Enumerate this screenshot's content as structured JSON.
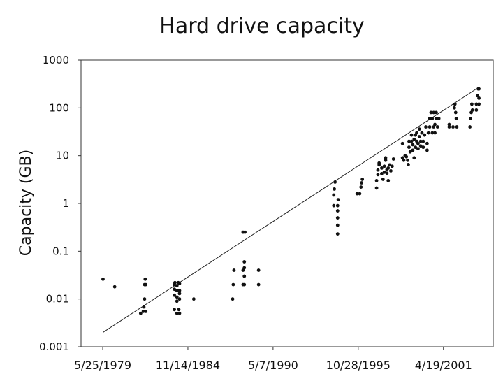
{
  "chart_data": {
    "type": "scatter",
    "title": "Hard drive capacity",
    "xlabel": "",
    "ylabel": "Capacity (GB)",
    "y_scale": "log",
    "ylim": [
      0.001,
      1000
    ],
    "yticks": [
      "1000",
      "100",
      "10",
      "1",
      "0.1",
      "0.01",
      "0.001"
    ],
    "xlim": [
      "1978-01-01",
      "2004-07-01"
    ],
    "xticks": [
      "5/25/1979",
      "11/14/1984",
      "5/7/1990",
      "10/28/1995",
      "4/19/2001"
    ],
    "grid": false,
    "legend": "none",
    "trend_line": {
      "start": [
        "1979-06-01",
        0.002
      ],
      "end": [
        "2003-06-01",
        250
      ]
    },
    "points": [
      [
        "1979-06-01",
        0.026
      ],
      [
        "1980-03-01",
        0.018
      ],
      [
        "1981-11-01",
        0.005
      ],
      [
        "1982-01-01",
        0.0055
      ],
      [
        "1982-01-15",
        0.0068
      ],
      [
        "1982-02-01",
        0.01
      ],
      [
        "1982-02-01",
        0.02
      ],
      [
        "1982-02-15",
        0.026
      ],
      [
        "1982-03-01",
        0.02
      ],
      [
        "1982-03-01",
        0.0055
      ],
      [
        "1984-01-01",
        0.006
      ],
      [
        "1984-01-01",
        0.012
      ],
      [
        "1984-01-01",
        0.016
      ],
      [
        "1984-01-01",
        0.02
      ],
      [
        "1984-01-15",
        0.022
      ],
      [
        "1984-03-01",
        0.005
      ],
      [
        "1984-03-01",
        0.009
      ],
      [
        "1984-03-01",
        0.011
      ],
      [
        "1984-03-01",
        0.015
      ],
      [
        "1984-03-01",
        0.019
      ],
      [
        "1984-04-01",
        0.022
      ],
      [
        "1984-04-15",
        0.006
      ],
      [
        "1984-05-01",
        0.005
      ],
      [
        "1984-05-01",
        0.01
      ],
      [
        "1984-05-01",
        0.013
      ],
      [
        "1984-05-01",
        0.015
      ],
      [
        "1984-05-01",
        0.021
      ],
      [
        "1985-04-01",
        0.01
      ],
      [
        "1987-10-01",
        0.01
      ],
      [
        "1987-10-15",
        0.02
      ],
      [
        "1987-11-01",
        0.04
      ],
      [
        "1988-06-01",
        0.02
      ],
      [
        "1988-06-01",
        0.04
      ],
      [
        "1988-06-01",
        0.25
      ],
      [
        "1988-07-01",
        0.02
      ],
      [
        "1988-07-01",
        0.03
      ],
      [
        "1988-07-01",
        0.045
      ],
      [
        "1988-07-01",
        0.06
      ],
      [
        "1988-07-15",
        0.25
      ],
      [
        "1989-06-01",
        0.02
      ],
      [
        "1989-06-01",
        0.04
      ],
      [
        "1994-04-01",
        0.9
      ],
      [
        "1994-04-01",
        1.5
      ],
      [
        "1994-04-15",
        2.0
      ],
      [
        "1994-05-01",
        2.8
      ],
      [
        "1994-07-01",
        0.23
      ],
      [
        "1994-07-01",
        0.35
      ],
      [
        "1994-07-01",
        0.5
      ],
      [
        "1994-07-01",
        0.7
      ],
      [
        "1994-07-01",
        0.9
      ],
      [
        "1994-07-15",
        1.2
      ],
      [
        "1995-10-01",
        1.6
      ],
      [
        "1995-12-01",
        1.6
      ],
      [
        "1996-01-01",
        2.2
      ],
      [
        "1996-01-15",
        2.7
      ],
      [
        "1996-02-01",
        3.2
      ],
      [
        "1997-01-01",
        2.1
      ],
      [
        "1997-01-01",
        3.0
      ],
      [
        "1997-02-01",
        4.0
      ],
      [
        "1997-02-01",
        5.0
      ],
      [
        "1997-03-01",
        6.4
      ],
      [
        "1997-03-01",
        7.0
      ],
      [
        "1997-05-01",
        4.2
      ],
      [
        "1997-05-01",
        5.5
      ],
      [
        "1997-06-01",
        3.2
      ],
      [
        "1997-07-01",
        4.5
      ],
      [
        "1997-07-01",
        6.0
      ],
      [
        "1997-08-01",
        8.0
      ],
      [
        "1997-08-01",
        9.0
      ],
      [
        "1997-09-01",
        4.3
      ],
      [
        "1997-09-01",
        5.1
      ],
      [
        "1997-10-01",
        3.0
      ],
      [
        "1997-10-01",
        5.5
      ],
      [
        "1997-11-01",
        6.4
      ],
      [
        "1997-12-01",
        4.8
      ],
      [
        "1998-01-01",
        6.0
      ],
      [
        "1998-02-01",
        8.5
      ],
      [
        "1998-09-01",
        9.0
      ],
      [
        "1998-09-01",
        18
      ],
      [
        "1998-10-01",
        8.0
      ],
      [
        "1998-11-01",
        10
      ],
      [
        "1998-12-01",
        9.5
      ],
      [
        "1999-01-01",
        8.0
      ],
      [
        "1999-01-15",
        6.5
      ],
      [
        "1999-02-01",
        15
      ],
      [
        "1999-02-01",
        20
      ],
      [
        "1999-03-01",
        12
      ],
      [
        "1999-04-01",
        20
      ],
      [
        "1999-04-01",
        27
      ],
      [
        "1999-05-01",
        13
      ],
      [
        "1999-05-01",
        17
      ],
      [
        "1999-06-01",
        9.0
      ],
      [
        "1999-06-01",
        22
      ],
      [
        "1999-07-01",
        15
      ],
      [
        "1999-07-01",
        27
      ],
      [
        "1999-08-01",
        20
      ],
      [
        "1999-08-01",
        30
      ],
      [
        "1999-09-01",
        14
      ],
      [
        "1999-09-01",
        18
      ],
      [
        "1999-10-01",
        25
      ],
      [
        "1999-10-01",
        36
      ],
      [
        "1999-11-01",
        16
      ],
      [
        "1999-11-01",
        20
      ],
      [
        "1999-12-01",
        30
      ],
      [
        "2000-01-01",
        15
      ],
      [
        "2000-01-01",
        20
      ],
      [
        "2000-02-01",
        27
      ],
      [
        "2000-03-01",
        40
      ],
      [
        "2000-04-01",
        13
      ],
      [
        "2000-04-01",
        18
      ],
      [
        "2000-05-01",
        30
      ],
      [
        "2000-06-01",
        40
      ],
      [
        "2000-06-01",
        60
      ],
      [
        "2000-07-01",
        80
      ],
      [
        "2000-08-01",
        30
      ],
      [
        "2000-08-01",
        60
      ],
      [
        "2000-09-01",
        40
      ],
      [
        "2000-09-01",
        80
      ],
      [
        "2000-10-01",
        30
      ],
      [
        "2000-10-01",
        45
      ],
      [
        "2000-11-01",
        60
      ],
      [
        "2000-11-01",
        80
      ],
      [
        "2000-12-01",
        40
      ],
      [
        "2001-01-01",
        60
      ],
      [
        "2001-09-01",
        40
      ],
      [
        "2001-09-01",
        45
      ],
      [
        "2001-12-01",
        40
      ],
      [
        "2002-01-01",
        100
      ],
      [
        "2002-01-15",
        120
      ],
      [
        "2002-02-01",
        80
      ],
      [
        "2002-02-15",
        60
      ],
      [
        "2002-03-01",
        40
      ],
      [
        "2003-01-01",
        40
      ],
      [
        "2003-01-15",
        60
      ],
      [
        "2003-02-01",
        80
      ],
      [
        "2003-02-15",
        120
      ],
      [
        "2003-03-01",
        90
      ],
      [
        "2003-06-01",
        90
      ],
      [
        "2003-06-01",
        120
      ],
      [
        "2003-07-01",
        180
      ],
      [
        "2003-07-15",
        250
      ],
      [
        "2003-08-01",
        250
      ],
      [
        "2003-08-01",
        120
      ],
      [
        "2003-08-01",
        160
      ]
    ]
  }
}
